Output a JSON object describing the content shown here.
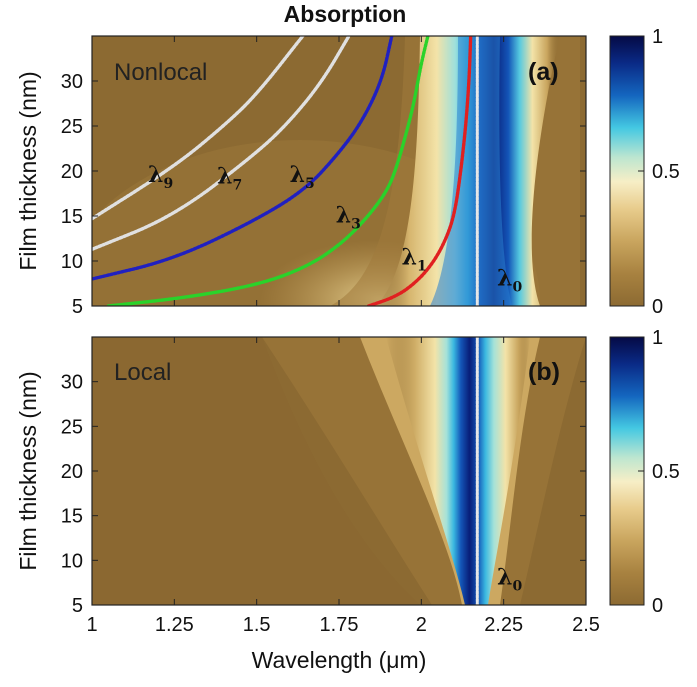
{
  "chart_data": {
    "type": "heatmap",
    "title": "Absorption",
    "shared_xlabel": "Wavelength (μm)",
    "colorbar": {
      "range": [
        0,
        1
      ],
      "ticks": [
        "0",
        "0.5",
        "1"
      ],
      "colors": [
        "#8c6a32",
        "#a88240",
        "#c9a55e",
        "#e8cc8c",
        "#f7eec6",
        "#bde6d0",
        "#44c8e2",
        "#1466bf",
        "#0a2a86",
        "#050a45"
      ]
    },
    "panels": [
      {
        "id": "a",
        "panel_label": "(a)",
        "mode_label": "Nonlocal",
        "ylabel": "Film thickness (nm)",
        "xlim": [
          1,
          2.5
        ],
        "ylim": [
          5,
          35
        ],
        "xticks": [
          "1",
          "1.25",
          "1.5",
          "1.75",
          "2",
          "2.25",
          "2.5"
        ],
        "yticks": [
          "5",
          "10",
          "15",
          "20",
          "25",
          "30"
        ],
        "lambda0": 2.17,
        "curves": [
          {
            "label": "λ",
            "sub": "0",
            "color": "#e6e6e6",
            "points": [
              [
                2.17,
                5
              ],
              [
                2.17,
                35
              ]
            ]
          },
          {
            "label": "λ",
            "sub": "1",
            "color": "#e02020",
            "points": [
              [
                1.84,
                5
              ],
              [
                1.92,
                6
              ],
              [
                1.98,
                7.5
              ],
              [
                2.03,
                9.5
              ],
              [
                2.07,
                12
              ],
              [
                2.1,
                15
              ],
              [
                2.12,
                20
              ],
              [
                2.135,
                25
              ],
              [
                2.145,
                30
              ],
              [
                2.15,
                35
              ]
            ]
          },
          {
            "label": "λ",
            "sub": "3",
            "color": "#2ad22a",
            "points": [
              [
                1.05,
                5
              ],
              [
                1.3,
                6
              ],
              [
                1.52,
                7.5
              ],
              [
                1.66,
                9.5
              ],
              [
                1.76,
                12
              ],
              [
                1.84,
                15
              ],
              [
                1.9,
                18
              ],
              [
                1.93,
                21
              ],
              [
                1.96,
                25
              ],
              [
                1.98,
                28
              ],
              [
                2.0,
                32
              ],
              [
                2.02,
                35
              ]
            ]
          },
          {
            "label": "λ",
            "sub": "5",
            "color": "#2020c0",
            "points": [
              [
                1.0,
                8
              ],
              [
                1.25,
                10.2
              ],
              [
                1.5,
                14.6
              ],
              [
                1.65,
                18
              ],
              [
                1.75,
                22
              ],
              [
                1.82,
                25.5
              ],
              [
                1.88,
                30
              ],
              [
                1.91,
                35
              ]
            ]
          },
          {
            "label": "λ",
            "sub": "7",
            "color": "#e0e0e0",
            "points": [
              [
                1.0,
                11.3
              ],
              [
                1.25,
                15
              ],
              [
                1.5,
                22
              ],
              [
                1.6,
                25.5
              ],
              [
                1.7,
                30
              ],
              [
                1.78,
                35
              ]
            ]
          },
          {
            "label": "λ",
            "sub": "9",
            "color": "#e0e0e0",
            "points": [
              [
                1.0,
                14.7
              ],
              [
                1.25,
                20.5
              ],
              [
                1.4,
                25
              ],
              [
                1.5,
                28.5
              ],
              [
                1.64,
                35
              ]
            ]
          }
        ]
      },
      {
        "id": "b",
        "panel_label": "(b)",
        "mode_label": "Local",
        "ylabel": "Film thickness (nm)",
        "xlim": [
          1,
          2.5
        ],
        "ylim": [
          5,
          35
        ],
        "xticks": [
          "1",
          "1.25",
          "1.5",
          "1.75",
          "2",
          "2.25",
          "2.5"
        ],
        "yticks": [
          "5",
          "10",
          "15",
          "20",
          "25",
          "30"
        ],
        "lambda0": 2.17,
        "curves": [
          {
            "label": "λ",
            "sub": "0",
            "color": "#e6e6e6",
            "points": [
              [
                2.17,
                5
              ],
              [
                2.17,
                35
              ]
            ]
          }
        ]
      }
    ]
  }
}
